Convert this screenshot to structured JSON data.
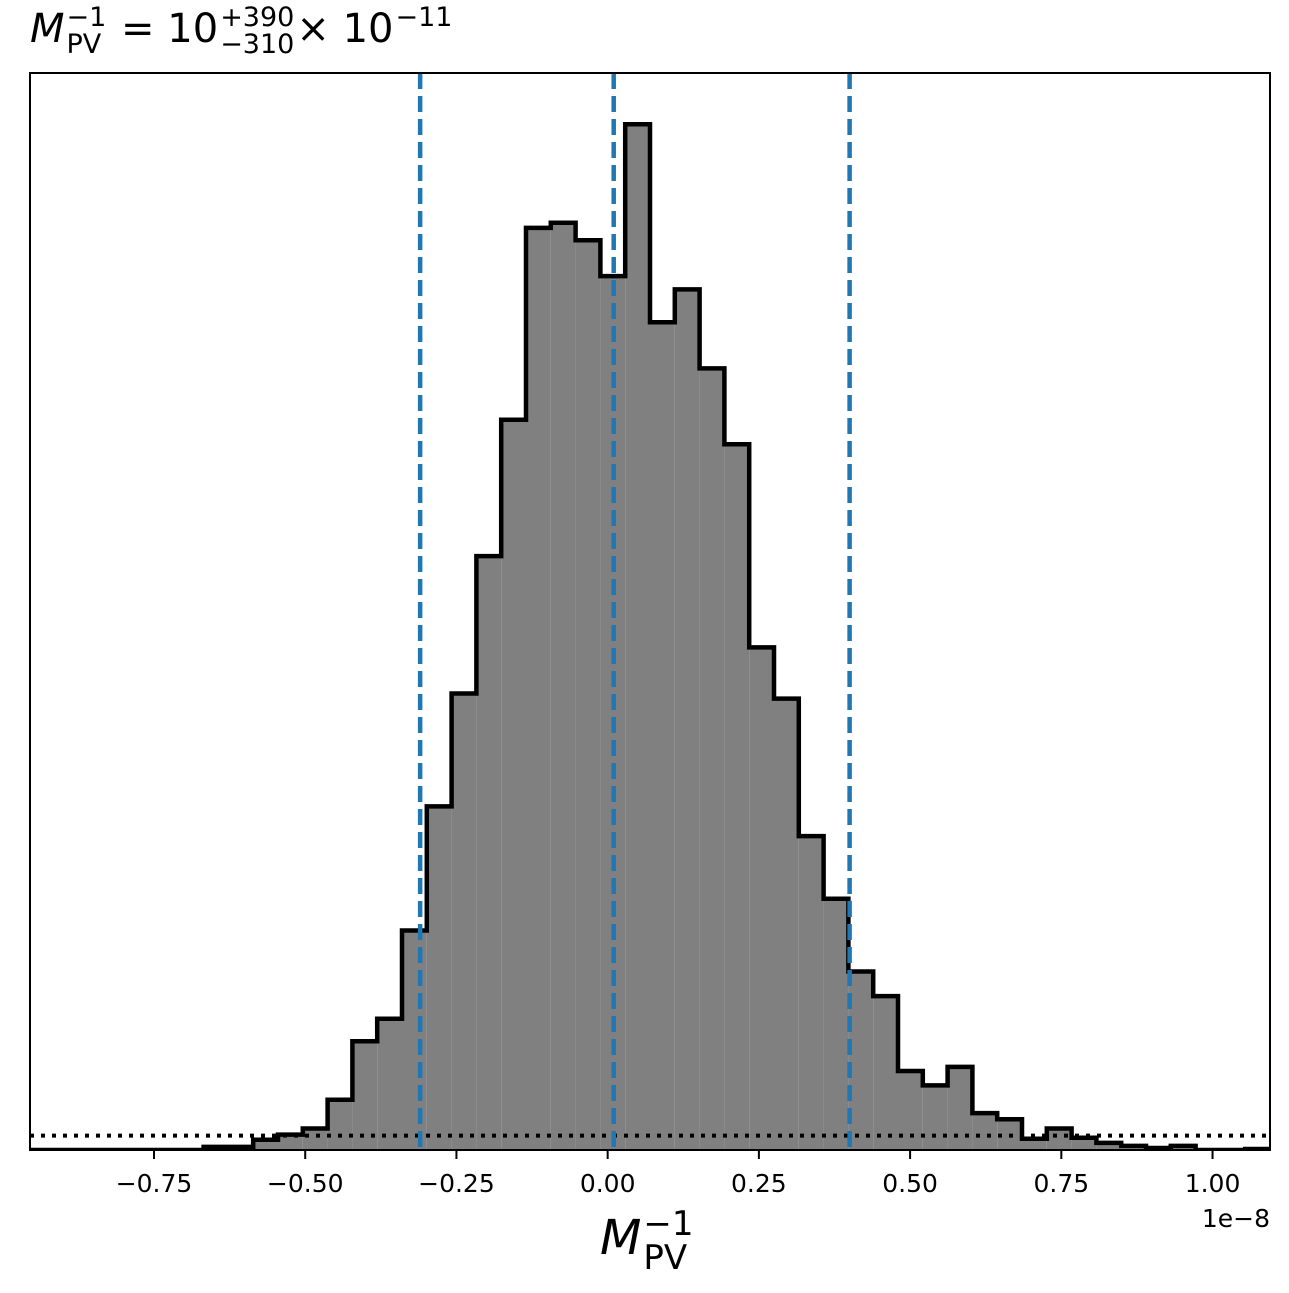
{
  "chart_data": {
    "type": "histogram",
    "title": {
      "symbol": "M",
      "symbol_sup": "−1",
      "symbol_sub": "PV",
      "equals": "= 10",
      "err_plus": "+390",
      "err_minus": "−310",
      "times": "× 10",
      "exponent": "−11"
    },
    "xlabel": {
      "symbol": "M",
      "sup": "−1",
      "sub": "PV"
    },
    "x_offset_label": "1e−8",
    "x_scale": 1e-08,
    "xlim": [
      -0.955,
      1.095
    ],
    "ylim": [
      0,
      1.05
    ],
    "x_ticks": [
      -0.75,
      -0.5,
      -0.25,
      0.0,
      0.25,
      0.5,
      0.75,
      1.0
    ],
    "x_tick_labels": [
      "−0.75",
      "−0.50",
      "−0.25",
      "0.00",
      "0.25",
      "0.50",
      "0.75",
      "1.00"
    ],
    "y_ticks_shown": false,
    "bin_edges": [
      -0.955,
      -0.914,
      -0.873,
      -0.832,
      -0.791,
      -0.75,
      -0.709,
      -0.668,
      -0.627,
      -0.586,
      -0.545,
      -0.504,
      -0.463,
      -0.422,
      -0.381,
      -0.34,
      -0.299,
      -0.258,
      -0.217,
      -0.176,
      -0.135,
      -0.094,
      -0.053,
      -0.012,
      0.029,
      0.07,
      0.111,
      0.152,
      0.193,
      0.234,
      0.275,
      0.316,
      0.357,
      0.398,
      0.439,
      0.48,
      0.521,
      0.562,
      0.603,
      0.644,
      0.685,
      0.726,
      0.767,
      0.808,
      0.849,
      0.89,
      0.931,
      0.972,
      1.013,
      1.054,
      1.095
    ],
    "counts": [
      0,
      0,
      0,
      0,
      0,
      0,
      0,
      0.003,
      0.003,
      0.01,
      0.015,
      0.021,
      0.049,
      0.106,
      0.128,
      0.214,
      0.335,
      0.445,
      0.579,
      0.712,
      0.899,
      0.904,
      0.887,
      0.852,
      1.0,
      0.807,
      0.839,
      0.762,
      0.688,
      0.49,
      0.44,
      0.306,
      0.245,
      0.174,
      0.15,
      0.077,
      0.063,
      0.081,
      0.036,
      0.03,
      0.011,
      0.021,
      0.012,
      0.007,
      0.004,
      0.002,
      0.004,
      0,
      0,
      0.001
    ],
    "hist_fill": "#808080",
    "hist_edge": "#000000",
    "percentile_lines": {
      "color": "#1f77b4",
      "style": "dashed",
      "x": [
        -0.31,
        0.01,
        0.4
      ]
    },
    "baseline_line": {
      "y": 0.014,
      "style": "dotted",
      "color": "#000000"
    }
  }
}
